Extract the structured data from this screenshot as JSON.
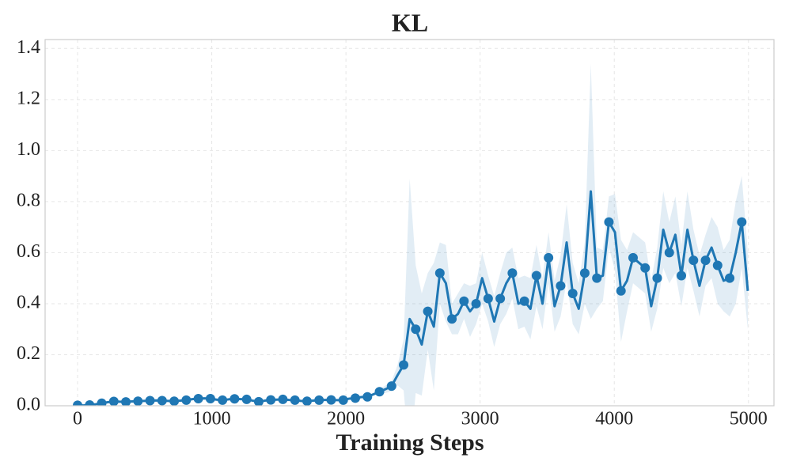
{
  "chart_data": {
    "type": "line",
    "title": "KL",
    "x_label": "Training Steps",
    "color": "#1f77b4",
    "band_color": "#1f77b4",
    "marker_every": 2,
    "grid": true,
    "xlim": [
      -242,
      5190
    ],
    "xticks": [
      0,
      1000,
      2000,
      3000,
      4000,
      5000
    ],
    "ylim": [
      0,
      1.435
    ],
    "yticks": [
      {
        "value": 0,
        "label": "0.0"
      },
      {
        "value": 0.2,
        "label": "0.2"
      },
      {
        "value": 0.4,
        "label": "0.4"
      },
      {
        "value": 0.6,
        "label": "0.6"
      },
      {
        "value": 0.8,
        "label": "0.8"
      },
      {
        "value": 1.0,
        "label": "1.0"
      },
      {
        "value": 1.2,
        "label": "1.2"
      },
      {
        "value": 1.4,
        "label": "1.4"
      }
    ],
    "x": [
      0,
      45,
      90,
      135,
      180,
      225,
      270,
      315,
      360,
      405,
      450,
      495,
      540,
      585,
      630,
      675,
      720,
      765,
      810,
      855,
      900,
      945,
      990,
      1035,
      1080,
      1125,
      1170,
      1215,
      1260,
      1305,
      1350,
      1395,
      1440,
      1485,
      1530,
      1575,
      1620,
      1665,
      1710,
      1755,
      1800,
      1845,
      1890,
      1935,
      1980,
      2025,
      2070,
      2115,
      2160,
      2205,
      2250,
      2295,
      2340,
      2385,
      2430,
      2475,
      2520,
      2565,
      2610,
      2655,
      2700,
      2745,
      2790,
      2835,
      2880,
      2925,
      2970,
      3015,
      3060,
      3105,
      3150,
      3195,
      3240,
      3285,
      3330,
      3375,
      3420,
      3465,
      3510,
      3555,
      3600,
      3645,
      3690,
      3735,
      3780,
      3825,
      3870,
      3915,
      3960,
      4005,
      4050,
      4095,
      4140,
      4185,
      4230,
      4275,
      4320,
      4365,
      4410,
      4455,
      4500,
      4545,
      4590,
      4635,
      4680,
      4725,
      4770,
      4815,
      4860,
      4905,
      4950,
      4995
    ],
    "values": [
      0.002,
      0.001,
      0.003,
      0.006,
      0.01,
      0.014,
      0.017,
      0.016,
      0.015,
      0.017,
      0.018,
      0.019,
      0.02,
      0.021,
      0.02,
      0.019,
      0.018,
      0.02,
      0.022,
      0.026,
      0.028,
      0.029,
      0.028,
      0.024,
      0.022,
      0.025,
      0.027,
      0.026,
      0.025,
      0.02,
      0.016,
      0.02,
      0.023,
      0.024,
      0.025,
      0.023,
      0.022,
      0.019,
      0.018,
      0.02,
      0.022,
      0.023,
      0.023,
      0.022,
      0.022,
      0.028,
      0.03,
      0.034,
      0.035,
      0.045,
      0.055,
      0.065,
      0.077,
      0.12,
      0.16,
      0.34,
      0.3,
      0.24,
      0.37,
      0.31,
      0.52,
      0.48,
      0.34,
      0.36,
      0.41,
      0.37,
      0.4,
      0.5,
      0.42,
      0.33,
      0.42,
      0.48,
      0.52,
      0.4,
      0.41,
      0.38,
      0.51,
      0.4,
      0.58,
      0.39,
      0.47,
      0.64,
      0.44,
      0.38,
      0.52,
      0.84,
      0.5,
      0.51,
      0.72,
      0.68,
      0.45,
      0.49,
      0.58,
      0.56,
      0.54,
      0.39,
      0.5,
      0.69,
      0.6,
      0.67,
      0.51,
      0.69,
      0.57,
      0.47,
      0.57,
      0.62,
      0.55,
      0.49,
      0.5,
      0.6,
      0.72,
      0.45
    ],
    "errors": [
      0.003,
      0.003,
      0.003,
      0.003,
      0.003,
      0.003,
      0.003,
      0.003,
      0.003,
      0.003,
      0.003,
      0.003,
      0.003,
      0.003,
      0.003,
      0.003,
      0.003,
      0.003,
      0.003,
      0.003,
      0.003,
      0.003,
      0.003,
      0.003,
      0.003,
      0.003,
      0.003,
      0.003,
      0.003,
      0.003,
      0.003,
      0.003,
      0.003,
      0.003,
      0.003,
      0.003,
      0.003,
      0.003,
      0.003,
      0.003,
      0.003,
      0.003,
      0.003,
      0.003,
      0.003,
      0.003,
      0.003,
      0.003,
      0.003,
      0.003,
      0.01,
      0.015,
      0.02,
      0.04,
      0.1,
      0.55,
      0.25,
      0.2,
      0.15,
      0.25,
      0.12,
      0.15,
      0.06,
      0.08,
      0.07,
      0.1,
      0.08,
      0.1,
      0.09,
      0.1,
      0.1,
      0.12,
      0.1,
      0.1,
      0.1,
      0.12,
      0.12,
      0.1,
      0.1,
      0.1,
      0.12,
      0.15,
      0.12,
      0.1,
      0.12,
      0.5,
      0.12,
      0.1,
      0.1,
      0.15,
      0.2,
      0.12,
      0.1,
      0.1,
      0.1,
      0.1,
      0.12,
      0.15,
      0.12,
      0.15,
      0.12,
      0.15,
      0.12,
      0.12,
      0.1,
      0.12,
      0.15,
      0.12,
      0.15,
      0.2,
      0.18,
      0.15
    ]
  }
}
